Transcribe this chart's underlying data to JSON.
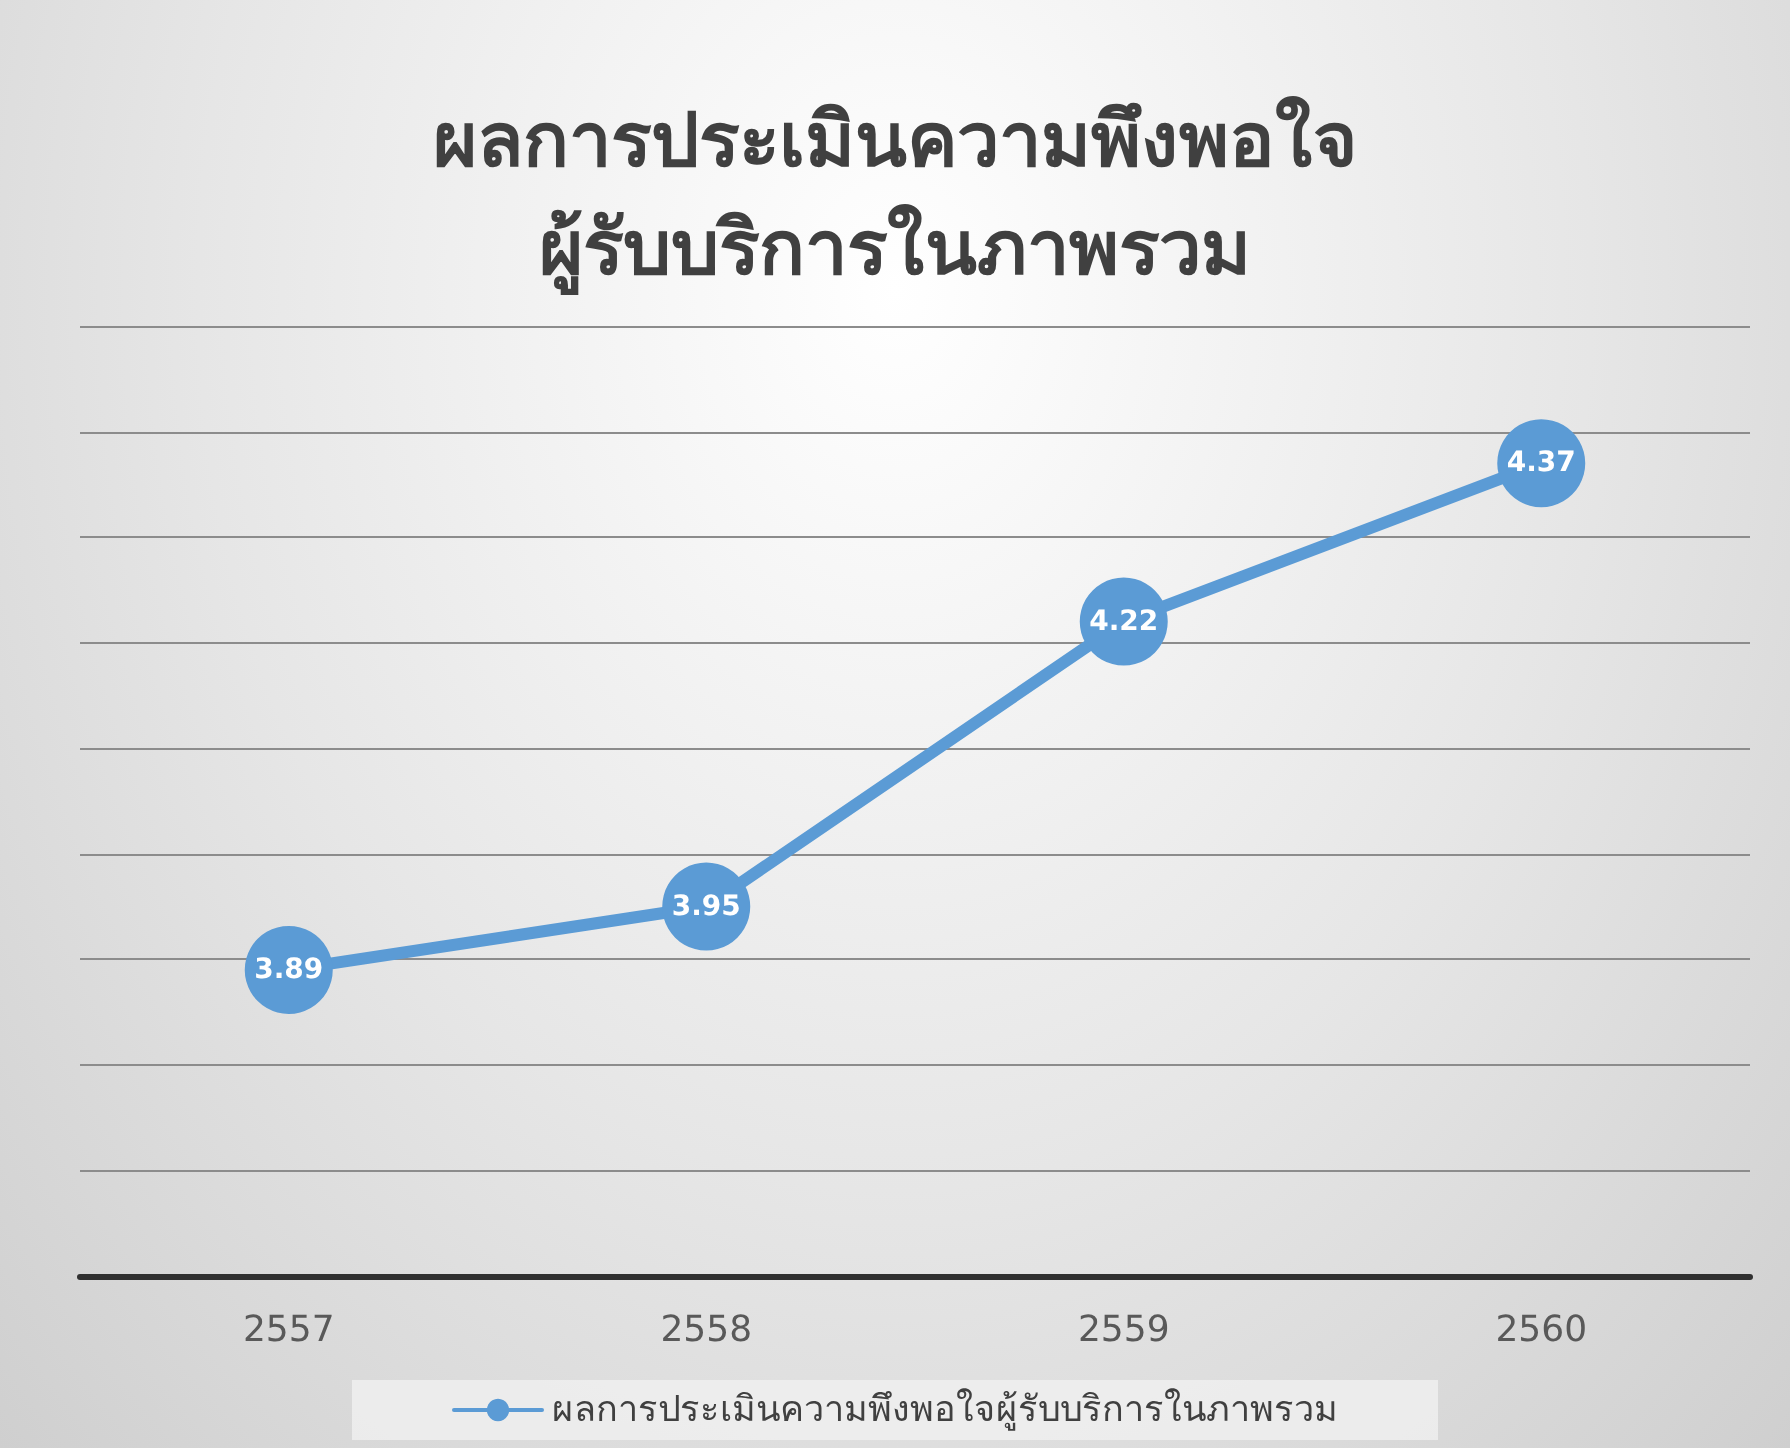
{
  "chart_data": {
    "type": "line",
    "title": "ผลการประเมินความพึงพอใจ\nผู้รับบริการในภาพรวม",
    "categories": [
      "2557",
      "2558",
      "2559",
      "2560"
    ],
    "series": [
      {
        "name": "ผลการประเมินความพึงพอใจผู้รับบริการในภาพรวม",
        "color": "#5b9bd5",
        "values": [
          3.89,
          3.95,
          4.22,
          4.37
        ]
      }
    ],
    "ylim": [
      3.6,
      4.5
    ],
    "yticks": [
      {
        "value": 3.6,
        "label": null
      },
      {
        "value": 3.7,
        "label": null
      },
      {
        "value": 3.8,
        "label": null
      },
      {
        "value": 3.9,
        "label": null
      },
      {
        "value": 4.0,
        "label": null
      },
      {
        "value": 4.1,
        "label": null
      },
      {
        "value": 4.2,
        "label": null
      },
      {
        "value": 4.3,
        "label": null
      },
      {
        "value": 4.4,
        "label": null
      },
      {
        "value": 4.5,
        "label": null
      }
    ],
    "tick_labels": "x",
    "grid": "y",
    "legend": "bottom",
    "marker": "circle",
    "line_style": "solid",
    "data_labels": true
  }
}
